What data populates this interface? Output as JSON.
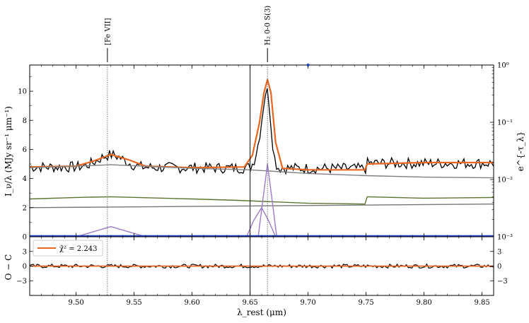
{
  "chart_data": [
    {
      "type": "line",
      "panel": "main",
      "xlabel": "λ_rest (μm)",
      "ylabel": "I_ν/λ (MJy sr⁻¹ μm⁻¹)",
      "ylabel_right": "e^{-τ_λ}",
      "xlim": [
        9.46,
        9.86
      ],
      "ylim": [
        0,
        11.8
      ],
      "y_right_scale": "log",
      "y_right_lim": [
        0.001,
        1
      ],
      "x_ticks": [
        9.5,
        9.55,
        9.6,
        9.65,
        9.7,
        9.75,
        9.8,
        9.85
      ],
      "x_tick_labels": [
        "9.50",
        "9.55",
        "9.60",
        "9.65",
        "9.70",
        "9.75",
        "9.80",
        "9.85"
      ],
      "y_ticks": [
        0,
        2,
        4,
        6,
        8,
        10
      ],
      "y_tick_labels": [
        "0",
        "2",
        "4",
        "6",
        "8",
        "10"
      ],
      "y_right_ticks": [
        0.001,
        0.01,
        0.1,
        1
      ],
      "y_right_tick_labels": [
        "10⁻³",
        "10⁻²",
        "10⁻¹",
        "10⁰"
      ],
      "grid": false,
      "vertical_lines": [
        {
          "x": 9.65,
          "style": "solid",
          "color": "#222222"
        },
        {
          "x": 9.527,
          "style": "dotted",
          "color": "#555555"
        },
        {
          "x": 9.665,
          "style": "dotted",
          "color": "#555555"
        }
      ],
      "line_labels": [
        {
          "x": 9.527,
          "text": "[Fe VII]"
        },
        {
          "x": 9.665,
          "text": "H₂ 0-0 S(3)"
        }
      ],
      "series": [
        {
          "role": "observed",
          "color": "#000000",
          "values_description": "noisy spectrum ~4.8 with line peaks"
        },
        {
          "role": "fit",
          "color": "#e8661f",
          "x": [
            9.46,
            9.5,
            9.515,
            9.53,
            9.545,
            9.56,
            9.6,
            9.645,
            9.652,
            9.658,
            9.662,
            9.665,
            9.668,
            9.672,
            9.678,
            9.7,
            9.749,
            9.751,
            9.8,
            9.86
          ],
          "y": [
            4.8,
            4.85,
            5.2,
            5.65,
            5.3,
            4.85,
            4.75,
            4.8,
            5.6,
            7.8,
            9.9,
            10.8,
            9.9,
            6.5,
            4.7,
            4.6,
            4.6,
            5.0,
            5.1,
            5.1
          ]
        },
        {
          "role": "continuum-attenuated",
          "color": "#808080",
          "x": [
            9.46,
            9.5,
            9.53,
            9.6,
            9.65,
            9.7,
            9.75,
            9.8,
            9.86
          ],
          "y": [
            4.75,
            4.85,
            4.95,
            4.7,
            4.6,
            4.35,
            4.2,
            4.1,
            4.05
          ]
        },
        {
          "role": "extinction",
          "color": "#5b7530",
          "x": [
            9.46,
            9.5,
            9.53,
            9.6,
            9.64,
            9.7,
            9.749,
            9.751,
            9.8,
            9.86
          ],
          "y": [
            2.6,
            2.7,
            2.75,
            2.6,
            2.5,
            2.3,
            2.25,
            2.75,
            2.65,
            2.7
          ]
        },
        {
          "role": "continuum-baseline",
          "color": "#777777",
          "x": [
            9.46,
            9.86
          ],
          "y": [
            2.0,
            2.25
          ]
        },
        {
          "role": "line-component",
          "color": "#9d7cc8",
          "x": [
            9.5,
            9.515,
            9.53,
            9.545,
            9.56
          ],
          "y": [
            0.0,
            0.35,
            0.7,
            0.35,
            0.0
          ]
        },
        {
          "role": "line-component",
          "color": "#9d7cc8",
          "x": [
            9.647,
            9.653,
            9.66,
            9.666,
            9.672
          ],
          "y": [
            0.0,
            1.1,
            2.0,
            1.1,
            0.0
          ]
        },
        {
          "role": "line-component",
          "color": "#9d7cc8",
          "x": [
            9.657,
            9.661,
            9.665,
            9.669,
            9.673
          ],
          "y": [
            0.0,
            2.5,
            5.0,
            2.5,
            0.0
          ]
        },
        {
          "role": "zero-line",
          "color": "#1f3fbf",
          "x": [
            9.46,
            9.86
          ],
          "y": [
            0.05,
            0.05
          ]
        }
      ]
    },
    {
      "type": "line",
      "panel": "residual",
      "xlabel": "λ_rest (μm)",
      "ylabel": "O − C",
      "ylim": [
        -6,
        6
      ],
      "y_ticks": [
        -3,
        0,
        3
      ],
      "y_tick_labels": [
        "−3",
        "0",
        "3"
      ],
      "legend": {
        "placement": "top-left",
        "entries": [
          {
            "label": "χ̃² = 2.243",
            "color": "#e8661f"
          }
        ]
      },
      "series": [
        {
          "role": "residual",
          "color": "#000000",
          "values_description": "noise around 0"
        },
        {
          "role": "zero",
          "color": "#e8661f",
          "x": [
            9.46,
            9.86
          ],
          "y": [
            0,
            0
          ]
        }
      ]
    }
  ]
}
